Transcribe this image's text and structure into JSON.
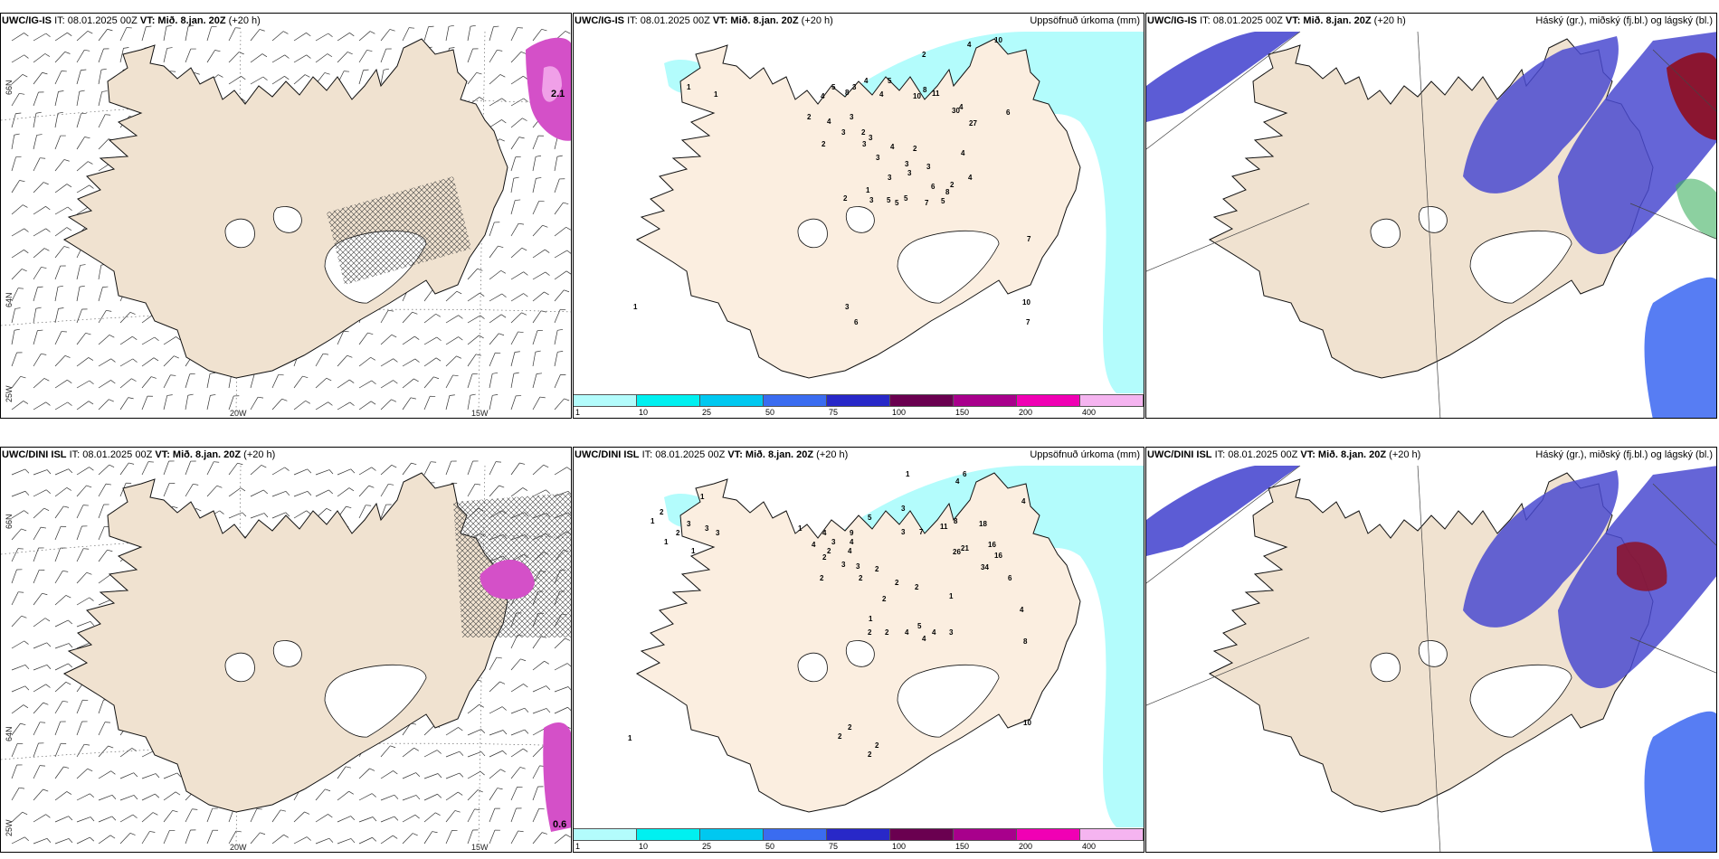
{
  "rows": [
    {
      "panels": [
        {
          "type": "wind",
          "src": "UWC/IG-IS",
          "it": "IT: 08.01.2025 00Z",
          "vt_label": "VT:",
          "vt": "Mið. 8.jan. 20Z",
          "lead": "(+20 h)",
          "right_title": "",
          "max_label": "2.1"
        },
        {
          "type": "precip",
          "src": "UWC/IG-IS",
          "it": "IT: 08.01.2025 00Z",
          "vt_label": "VT:",
          "vt": "Mið. 8.jan. 20Z",
          "lead": "(+20 h)",
          "right_title": "Uppsöfnuð úrkoma (mm)"
        },
        {
          "type": "cloud",
          "src": "UWC/IG-IS",
          "it": "IT: 08.01.2025 00Z",
          "vt_label": "VT:",
          "vt": "Mið. 8.jan. 20Z",
          "lead": "(+20 h)",
          "right_title": "Háský (gr.), miðský (fj.bl.) og lágský (bl.)"
        }
      ]
    },
    {
      "panels": [
        {
          "type": "wind",
          "src": "UWC/DINI ISL",
          "it": "IT: 08.01.2025 00Z",
          "vt_label": "VT:",
          "vt": "Mið. 8.jan. 20Z",
          "lead": "(+20 h)",
          "right_title": "",
          "max_label": "0.6"
        },
        {
          "type": "precip",
          "src": "UWC/DINI ISL",
          "it": "IT: 08.01.2025 00Z",
          "vt_label": "VT:",
          "vt": "Mið. 8.jan. 20Z",
          "lead": "(+20 h)",
          "right_title": "Uppsöfnuð úrkoma (mm)"
        },
        {
          "type": "cloud",
          "src": "UWC/DINI ISL",
          "it": "IT: 08.01.2025 00Z",
          "vt_label": "VT:",
          "vt": "Mið. 8.jan. 20Z",
          "lead": "(+20 h)",
          "right_title": "Háský (gr.), miðský (fj.bl.) og lágský (bl.)"
        }
      ]
    }
  ],
  "axis_labels": {
    "lat_66": "66N",
    "lat_64": "64N",
    "lon_25": "25W",
    "lon_20": "20W",
    "lon_15": "15W"
  },
  "colorbar": {
    "labels": [
      "1",
      "10",
      "25",
      "50",
      "75",
      "100",
      "150",
      "200",
      "400"
    ],
    "colors": [
      "#b3fcfc",
      "#00f0f0",
      "#00c8f0",
      "#3a6cf0",
      "#2828c8",
      "#6a0050",
      "#a8008c",
      "#f000b4",
      "#f5b4f0"
    ]
  },
  "precip_values_top": [
    {
      "x": 125,
      "y": 62,
      "v": "1"
    },
    {
      "x": 155,
      "y": 70,
      "v": "1"
    },
    {
      "x": 465,
      "y": 10,
      "v": "10"
    },
    {
      "x": 435,
      "y": 15,
      "v": "4"
    },
    {
      "x": 385,
      "y": 26,
      "v": "2"
    },
    {
      "x": 347,
      "y": 55,
      "v": "5"
    },
    {
      "x": 321,
      "y": 55,
      "v": "4"
    },
    {
      "x": 308,
      "y": 62,
      "v": "3"
    },
    {
      "x": 386,
      "y": 65,
      "v": "8"
    },
    {
      "x": 396,
      "y": 69,
      "v": "11"
    },
    {
      "x": 375,
      "y": 72,
      "v": "10"
    },
    {
      "x": 338,
      "y": 70,
      "v": "4"
    },
    {
      "x": 273,
      "y": 72,
      "v": "4"
    },
    {
      "x": 285,
      "y": 62,
      "v": "5"
    },
    {
      "x": 300,
      "y": 68,
      "v": "8"
    },
    {
      "x": 418,
      "y": 88,
      "v": "30"
    },
    {
      "x": 426,
      "y": 84,
      "v": "4"
    },
    {
      "x": 437,
      "y": 102,
      "v": "27"
    },
    {
      "x": 478,
      "y": 90,
      "v": "6"
    },
    {
      "x": 258,
      "y": 95,
      "v": "2"
    },
    {
      "x": 280,
      "y": 100,
      "v": "4"
    },
    {
      "x": 305,
      "y": 95,
      "v": "3"
    },
    {
      "x": 296,
      "y": 112,
      "v": "3"
    },
    {
      "x": 318,
      "y": 112,
      "v": "2"
    },
    {
      "x": 326,
      "y": 118,
      "v": "3"
    },
    {
      "x": 319,
      "y": 125,
      "v": "3"
    },
    {
      "x": 350,
      "y": 128,
      "v": "4"
    },
    {
      "x": 274,
      "y": 125,
      "v": "2"
    },
    {
      "x": 375,
      "y": 130,
      "v": "2"
    },
    {
      "x": 428,
      "y": 135,
      "v": "4"
    },
    {
      "x": 334,
      "y": 140,
      "v": "3"
    },
    {
      "x": 366,
      "y": 147,
      "v": "3"
    },
    {
      "x": 390,
      "y": 150,
      "v": "3"
    },
    {
      "x": 369,
      "y": 157,
      "v": "3"
    },
    {
      "x": 347,
      "y": 162,
      "v": "3"
    },
    {
      "x": 436,
      "y": 162,
      "v": "4"
    },
    {
      "x": 416,
      "y": 170,
      "v": "2"
    },
    {
      "x": 395,
      "y": 172,
      "v": "6"
    },
    {
      "x": 411,
      "y": 178,
      "v": "8"
    },
    {
      "x": 323,
      "y": 176,
      "v": "1"
    },
    {
      "x": 298,
      "y": 185,
      "v": "2"
    },
    {
      "x": 327,
      "y": 187,
      "v": "3"
    },
    {
      "x": 346,
      "y": 187,
      "v": "5"
    },
    {
      "x": 365,
      "y": 185,
      "v": "5"
    },
    {
      "x": 355,
      "y": 190,
      "v": "5"
    },
    {
      "x": 388,
      "y": 190,
      "v": "7"
    },
    {
      "x": 406,
      "y": 188,
      "v": "5"
    },
    {
      "x": 501,
      "y": 230,
      "v": "7"
    },
    {
      "x": 496,
      "y": 300,
      "v": "10"
    },
    {
      "x": 500,
      "y": 322,
      "v": "7"
    },
    {
      "x": 66,
      "y": 305,
      "v": "1"
    },
    {
      "x": 300,
      "y": 305,
      "v": "3"
    },
    {
      "x": 310,
      "y": 322,
      "v": "6"
    }
  ],
  "precip_values_bottom": [
    {
      "x": 140,
      "y": 35,
      "v": "1"
    },
    {
      "x": 95,
      "y": 52,
      "v": "2"
    },
    {
      "x": 85,
      "y": 62,
      "v": "1"
    },
    {
      "x": 125,
      "y": 65,
      "v": "3"
    },
    {
      "x": 145,
      "y": 70,
      "v": "3"
    },
    {
      "x": 157,
      "y": 75,
      "v": "3"
    },
    {
      "x": 113,
      "y": 75,
      "v": "2"
    },
    {
      "x": 100,
      "y": 85,
      "v": "1"
    },
    {
      "x": 130,
      "y": 95,
      "v": "1"
    },
    {
      "x": 367,
      "y": 10,
      "v": "1"
    },
    {
      "x": 430,
      "y": 10,
      "v": "6"
    },
    {
      "x": 422,
      "y": 18,
      "v": "4"
    },
    {
      "x": 495,
      "y": 40,
      "v": "4"
    },
    {
      "x": 362,
      "y": 48,
      "v": "3"
    },
    {
      "x": 325,
      "y": 58,
      "v": "5"
    },
    {
      "x": 362,
      "y": 74,
      "v": "3"
    },
    {
      "x": 382,
      "y": 74,
      "v": "7"
    },
    {
      "x": 405,
      "y": 68,
      "v": "11"
    },
    {
      "x": 420,
      "y": 62,
      "v": "8"
    },
    {
      "x": 448,
      "y": 65,
      "v": "18"
    },
    {
      "x": 458,
      "y": 88,
      "v": "16"
    },
    {
      "x": 465,
      "y": 100,
      "v": "16"
    },
    {
      "x": 428,
      "y": 92,
      "v": "21"
    },
    {
      "x": 419,
      "y": 96,
      "v": "26"
    },
    {
      "x": 450,
      "y": 113,
      "v": "34"
    },
    {
      "x": 248,
      "y": 70,
      "v": "1"
    },
    {
      "x": 275,
      "y": 75,
      "v": "4"
    },
    {
      "x": 305,
      "y": 75,
      "v": "9"
    },
    {
      "x": 305,
      "y": 85,
      "v": "4"
    },
    {
      "x": 285,
      "y": 85,
      "v": "3"
    },
    {
      "x": 263,
      "y": 88,
      "v": "4"
    },
    {
      "x": 280,
      "y": 95,
      "v": "2"
    },
    {
      "x": 303,
      "y": 95,
      "v": "4"
    },
    {
      "x": 275,
      "y": 102,
      "v": "2"
    },
    {
      "x": 296,
      "y": 110,
      "v": "3"
    },
    {
      "x": 312,
      "y": 112,
      "v": "3"
    },
    {
      "x": 333,
      "y": 115,
      "v": "2"
    },
    {
      "x": 315,
      "y": 125,
      "v": "2"
    },
    {
      "x": 355,
      "y": 130,
      "v": "2"
    },
    {
      "x": 377,
      "y": 135,
      "v": "2"
    },
    {
      "x": 272,
      "y": 125,
      "v": "2"
    },
    {
      "x": 341,
      "y": 148,
      "v": "2"
    },
    {
      "x": 415,
      "y": 145,
      "v": "1"
    },
    {
      "x": 480,
      "y": 125,
      "v": "6"
    },
    {
      "x": 493,
      "y": 160,
      "v": "4"
    },
    {
      "x": 497,
      "y": 195,
      "v": "8"
    },
    {
      "x": 326,
      "y": 170,
      "v": "1"
    },
    {
      "x": 344,
      "y": 185,
      "v": "2"
    },
    {
      "x": 325,
      "y": 185,
      "v": "2"
    },
    {
      "x": 366,
      "y": 185,
      "v": "4"
    },
    {
      "x": 380,
      "y": 178,
      "v": "5"
    },
    {
      "x": 385,
      "y": 192,
      "v": "4"
    },
    {
      "x": 396,
      "y": 185,
      "v": "4"
    },
    {
      "x": 415,
      "y": 185,
      "v": "3"
    },
    {
      "x": 497,
      "y": 285,
      "v": "10"
    },
    {
      "x": 303,
      "y": 290,
      "v": "2"
    },
    {
      "x": 292,
      "y": 300,
      "v": "2"
    },
    {
      "x": 333,
      "y": 310,
      "v": "2"
    },
    {
      "x": 325,
      "y": 320,
      "v": "2"
    },
    {
      "x": 60,
      "y": 302,
      "v": "1"
    }
  ]
}
